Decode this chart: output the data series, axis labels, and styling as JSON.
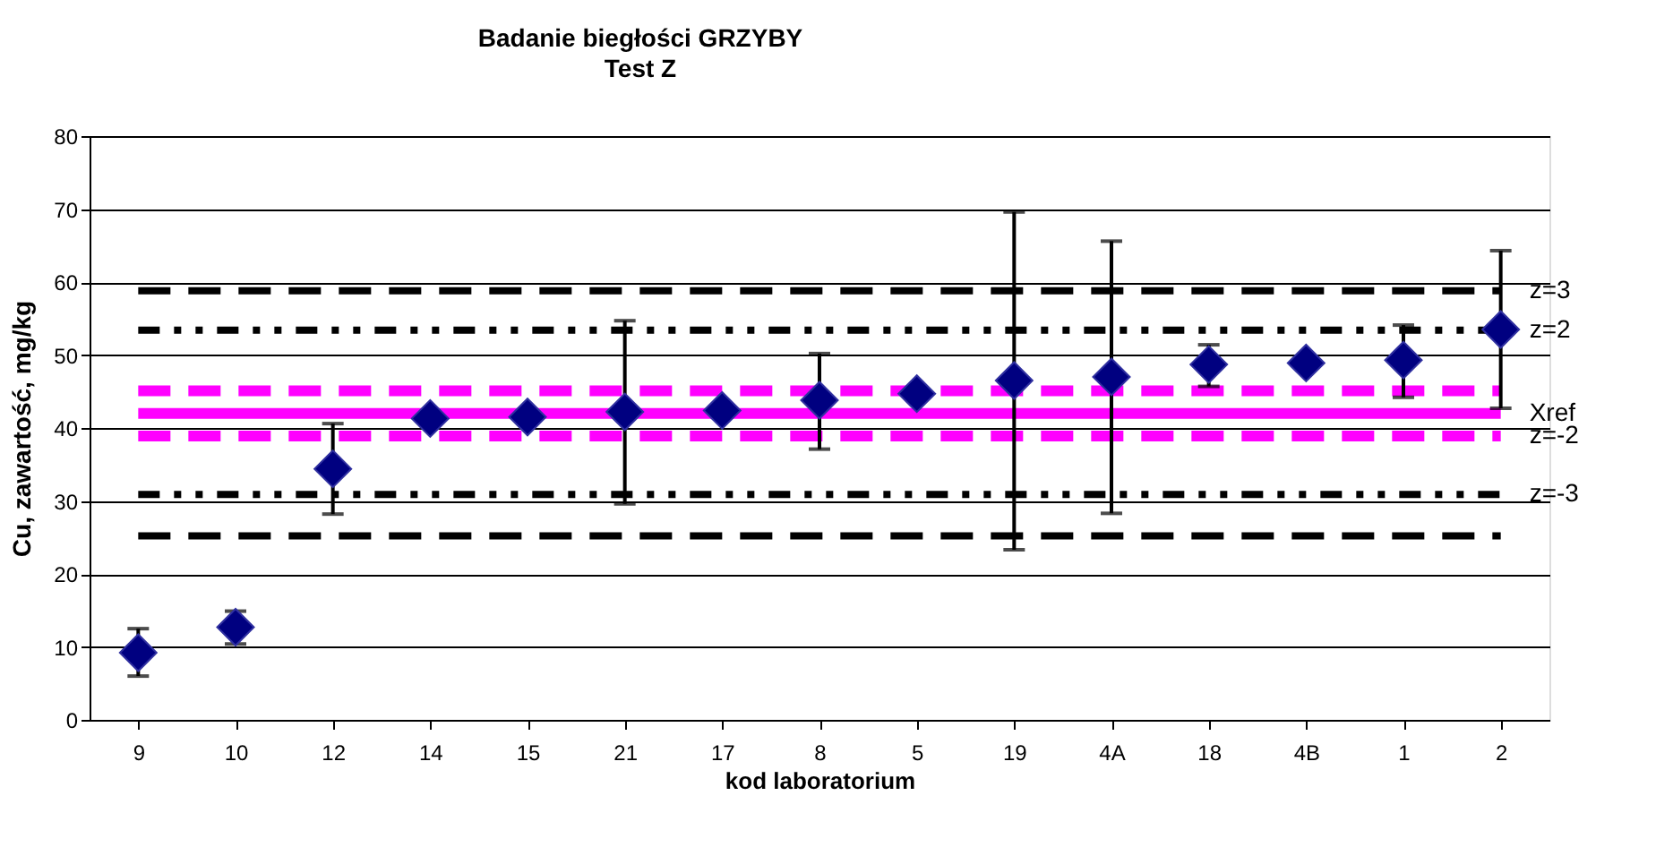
{
  "chart_data": {
    "type": "scatter",
    "title": "Badanie biegłości GRZYBY",
    "subtitle": "Test Z",
    "xlabel": "kod laboratorium",
    "ylabel": "Cu, zawartość, mg/kg",
    "categories": [
      "9",
      "10",
      "12",
      "14",
      "15",
      "21",
      "17",
      "8",
      "5",
      "19",
      "4A",
      "18",
      "4B",
      "1",
      "2"
    ],
    "series": [
      {
        "color": "#000080",
        "values": [
          9.2,
          12.7,
          34.4,
          41.3,
          41.5,
          42.2,
          42.4,
          43.8,
          44.7,
          46.5,
          47.0,
          48.7,
          48.9,
          49.3,
          53.5
        ],
        "errors": [
          [
            6.0,
            12.5
          ],
          [
            10.4,
            14.9
          ],
          [
            28.2,
            40.6
          ],
          null,
          null,
          [
            29.6,
            54.7
          ],
          null,
          [
            37.1,
            50.2
          ],
          null,
          [
            23.3,
            69.6
          ],
          [
            28.3,
            65.6
          ],
          [
            45.7,
            51.4
          ],
          null,
          [
            44.2,
            54.1
          ],
          [
            42.7,
            64.3
          ]
        ]
      }
    ],
    "ylim": [
      0,
      80
    ],
    "yticks": [
      0,
      10,
      20,
      30,
      40,
      50,
      60,
      70,
      80
    ],
    "grid": "y",
    "marker": "diamond",
    "annotations": [
      {
        "text": "z=3",
        "x": "2",
        "y": 58.8
      },
      {
        "text": "z=2",
        "x": "2",
        "y": 53.4
      },
      {
        "text": "Xref",
        "x": "2",
        "y": 42.0
      },
      {
        "text": "z=-2",
        "x": "2",
        "y": 38.9
      },
      {
        "text": "z=-3",
        "x": "2",
        "y": 30.9
      }
    ],
    "ref_lines": [
      {
        "axis": "y",
        "value": 58.8,
        "color": "#000000",
        "line_style": "dashed"
      },
      {
        "axis": "y",
        "value": 53.4,
        "color": "#000000",
        "line_style": "dotted"
      },
      {
        "axis": "y",
        "value": 45.1,
        "color": "#ff00ff",
        "line_style": "dashed"
      },
      {
        "axis": "y",
        "value": 42.0,
        "color": "#ff00ff",
        "line_style": "solid"
      },
      {
        "axis": "y",
        "value": 38.9,
        "color": "#ff00ff",
        "line_style": "dashed"
      },
      {
        "axis": "y",
        "value": 30.9,
        "color": "#000000",
        "line_style": "dotted"
      },
      {
        "axis": "y",
        "value": 25.2,
        "color": "#000000",
        "line_style": "dashed"
      }
    ]
  }
}
